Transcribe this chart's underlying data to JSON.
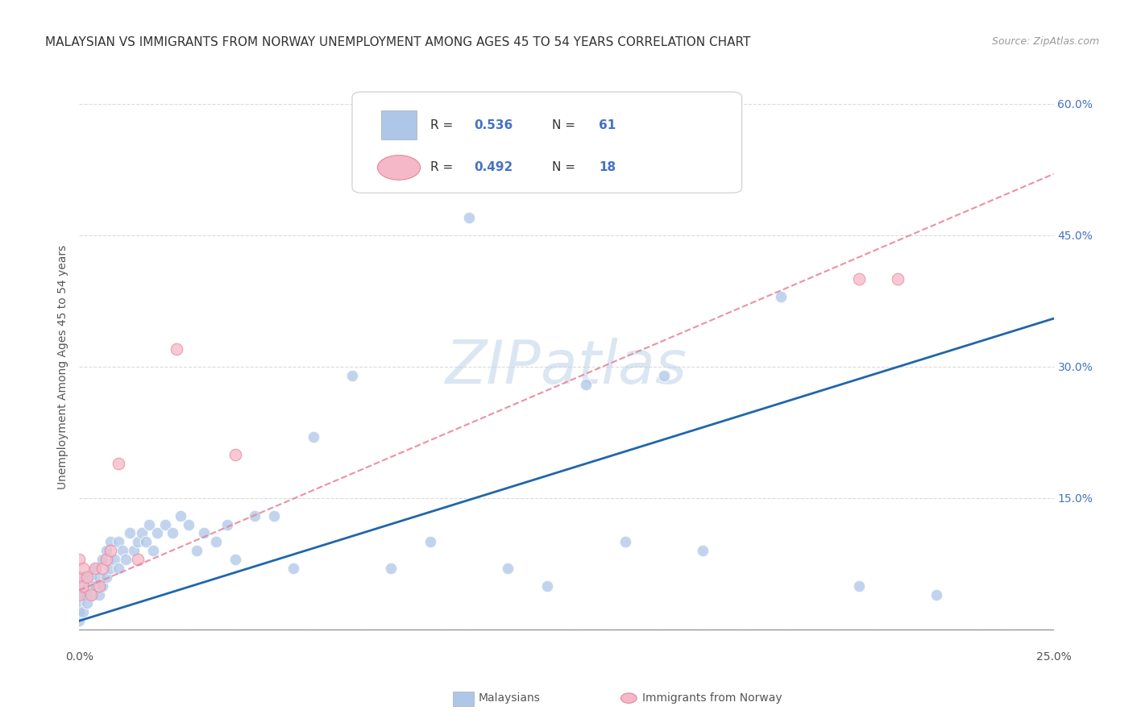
{
  "title": "MALAYSIAN VS IMMIGRANTS FROM NORWAY UNEMPLOYMENT AMONG AGES 45 TO 54 YEARS CORRELATION CHART",
  "source": "Source: ZipAtlas.com",
  "ylabel": "Unemployment Among Ages 45 to 54 years",
  "xlim": [
    0.0,
    0.25
  ],
  "ylim": [
    -0.02,
    0.62
  ],
  "background_color": "#ffffff",
  "grid_color": "#cccccc",
  "watermark": "ZIPatlas",
  "legend_r1": "R = 0.536",
  "legend_n1": "N = 61",
  "legend_r2": "R = 0.492",
  "legend_n2": "N = 18",
  "legend_label1": "Malaysians",
  "legend_label2": "Immigrants from Norway",
  "malaysian_color": "#aec6e8",
  "norway_color": "#f4b8c8",
  "malaysian_line_color": "#2166ac",
  "norway_line_color": "#e8869a",
  "title_fontsize": 11,
  "axis_label_fontsize": 10,
  "tick_fontsize": 10,
  "source_fontsize": 9,
  "malaysian_x": [
    0.0,
    0.0,
    0.0,
    0.0,
    0.0,
    0.001,
    0.001,
    0.001,
    0.002,
    0.002,
    0.003,
    0.003,
    0.004,
    0.004,
    0.005,
    0.005,
    0.006,
    0.006,
    0.007,
    0.007,
    0.008,
    0.008,
    0.009,
    0.01,
    0.01,
    0.011,
    0.012,
    0.013,
    0.014,
    0.015,
    0.016,
    0.017,
    0.018,
    0.019,
    0.02,
    0.022,
    0.024,
    0.026,
    0.028,
    0.03,
    0.032,
    0.035,
    0.038,
    0.04,
    0.045,
    0.05,
    0.055,
    0.06,
    0.07,
    0.08,
    0.09,
    0.1,
    0.11,
    0.12,
    0.13,
    0.14,
    0.15,
    0.16,
    0.18,
    0.2,
    0.22
  ],
  "malaysian_y": [
    0.01,
    0.02,
    0.03,
    0.04,
    0.05,
    0.02,
    0.04,
    0.06,
    0.03,
    0.05,
    0.04,
    0.06,
    0.05,
    0.07,
    0.04,
    0.06,
    0.05,
    0.08,
    0.06,
    0.09,
    0.07,
    0.1,
    0.08,
    0.07,
    0.1,
    0.09,
    0.08,
    0.11,
    0.09,
    0.1,
    0.11,
    0.1,
    0.12,
    0.09,
    0.11,
    0.12,
    0.11,
    0.13,
    0.12,
    0.09,
    0.11,
    0.1,
    0.12,
    0.08,
    0.13,
    0.13,
    0.07,
    0.22,
    0.29,
    0.07,
    0.1,
    0.47,
    0.07,
    0.05,
    0.28,
    0.1,
    0.29,
    0.09,
    0.38,
    0.05,
    0.04
  ],
  "norway_x": [
    0.0,
    0.0,
    0.0,
    0.001,
    0.001,
    0.002,
    0.003,
    0.004,
    0.005,
    0.006,
    0.007,
    0.008,
    0.01,
    0.015,
    0.025,
    0.04,
    0.2,
    0.21
  ],
  "norway_y": [
    0.04,
    0.06,
    0.08,
    0.05,
    0.07,
    0.06,
    0.04,
    0.07,
    0.05,
    0.07,
    0.08,
    0.09,
    0.19,
    0.08,
    0.32,
    0.2,
    0.4,
    0.4
  ],
  "malay_line_x0": 0.0,
  "malay_line_x1": 0.25,
  "malay_line_y0": 0.01,
  "malay_line_y1": 0.355,
  "norway_line_x0": 0.0,
  "norway_line_x1": 0.25,
  "norway_line_y0": 0.045,
  "norway_line_y1": 0.52
}
